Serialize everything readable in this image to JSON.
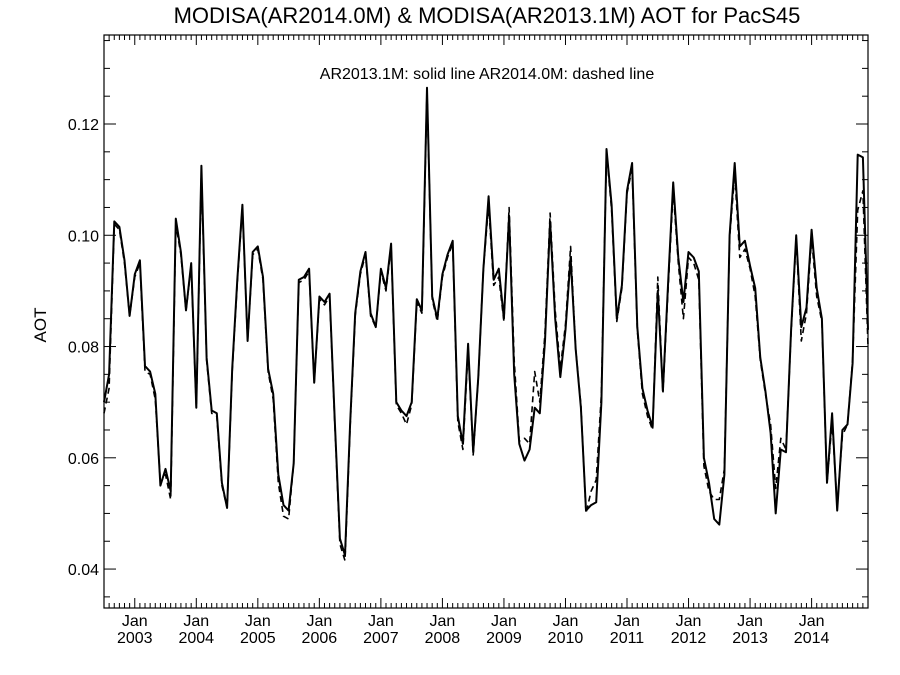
{
  "chart_data": {
    "type": "line",
    "title": "MODISA(AR2014.0M) & MODISA(AR2013.1M)  AOT for PacS45",
    "annotation": "AR2013.1M: solid line   AR2014.0M: dashed line",
    "ylabel": "AOT",
    "xlabel": "",
    "xlim": [
      "2002-07",
      "2014-12"
    ],
    "ylim": [
      0.033,
      0.136
    ],
    "y_ticks": [
      0.04,
      0.06,
      0.08,
      0.1,
      0.12
    ],
    "y_tick_labels": [
      "0.04",
      "0.06",
      "0.08",
      "0.10",
      "0.12"
    ],
    "x_ticks": [
      {
        "date": "2003-01",
        "month": "Jan",
        "year": "2003"
      },
      {
        "date": "2004-01",
        "month": "Jan",
        "year": "2004"
      },
      {
        "date": "2005-01",
        "month": "Jan",
        "year": "2005"
      },
      {
        "date": "2006-01",
        "month": "Jan",
        "year": "2006"
      },
      {
        "date": "2007-01",
        "month": "Jan",
        "year": "2007"
      },
      {
        "date": "2008-01",
        "month": "Jan",
        "year": "2008"
      },
      {
        "date": "2009-01",
        "month": "Jan",
        "year": "2009"
      },
      {
        "date": "2010-01",
        "month": "Jan",
        "year": "2010"
      },
      {
        "date": "2011-01",
        "month": "Jan",
        "year": "2011"
      },
      {
        "date": "2012-01",
        "month": "Jan",
        "year": "2012"
      },
      {
        "date": "2013-01",
        "month": "Jan",
        "year": "2013"
      },
      {
        "date": "2014-01",
        "month": "Jan",
        "year": "2014"
      }
    ],
    "grid": false,
    "x": [
      "2002-07",
      "2002-08",
      "2002-09",
      "2002-10",
      "2002-11",
      "2002-12",
      "2003-01",
      "2003-02",
      "2003-03",
      "2003-04",
      "2003-05",
      "2003-06",
      "2003-07",
      "2003-08",
      "2003-09",
      "2003-10",
      "2003-11",
      "2003-12",
      "2004-01",
      "2004-02",
      "2004-03",
      "2004-04",
      "2004-05",
      "2004-06",
      "2004-07",
      "2004-08",
      "2004-09",
      "2004-10",
      "2004-11",
      "2004-12",
      "2005-01",
      "2005-02",
      "2005-03",
      "2005-04",
      "2005-05",
      "2005-06",
      "2005-07",
      "2005-08",
      "2005-09",
      "2005-10",
      "2005-11",
      "2005-12",
      "2006-01",
      "2006-02",
      "2006-03",
      "2006-04",
      "2006-05",
      "2006-06",
      "2006-07",
      "2006-08",
      "2006-09",
      "2006-10",
      "2006-11",
      "2006-12",
      "2007-01",
      "2007-02",
      "2007-03",
      "2007-04",
      "2007-05",
      "2007-06",
      "2007-07",
      "2007-08",
      "2007-09",
      "2007-10",
      "2007-11",
      "2007-12",
      "2008-01",
      "2008-02",
      "2008-03",
      "2008-04",
      "2008-05",
      "2008-06",
      "2008-07",
      "2008-08",
      "2008-09",
      "2008-10",
      "2008-11",
      "2008-12",
      "2009-01",
      "2009-02",
      "2009-03",
      "2009-04",
      "2009-05",
      "2009-06",
      "2009-07",
      "2009-08",
      "2009-09",
      "2009-10",
      "2009-11",
      "2009-12",
      "2010-01",
      "2010-02",
      "2010-03",
      "2010-04",
      "2010-05",
      "2010-06",
      "2010-07",
      "2010-08",
      "2010-09",
      "2010-10",
      "2010-11",
      "2010-12",
      "2011-01",
      "2011-02",
      "2011-03",
      "2011-04",
      "2011-05",
      "2011-06",
      "2011-07",
      "2011-08",
      "2011-09",
      "2011-10",
      "2011-11",
      "2011-12",
      "2012-01",
      "2012-02",
      "2012-03",
      "2012-04",
      "2012-05",
      "2012-06",
      "2012-07",
      "2012-08",
      "2012-09",
      "2012-10",
      "2012-11",
      "2012-12",
      "2013-01",
      "2013-02",
      "2013-03",
      "2013-04",
      "2013-05",
      "2013-06",
      "2013-07",
      "2013-08",
      "2013-09",
      "2013-10",
      "2013-11",
      "2013-12",
      "2014-01",
      "2014-02",
      "2014-03",
      "2014-04",
      "2014-05",
      "2014-06",
      "2014-07",
      "2014-08",
      "2014-09",
      "2014-10",
      "2014-11",
      "2014-12"
    ],
    "series": [
      {
        "name": "AR2013.1M",
        "style": "solid",
        "values": [
          0.07,
          0.075,
          0.1025,
          0.1015,
          0.0955,
          0.0855,
          0.093,
          0.0955,
          0.0765,
          0.0755,
          0.0715,
          0.055,
          0.058,
          0.054,
          0.103,
          0.097,
          0.0865,
          0.095,
          0.069,
          0.1125,
          0.078,
          0.0685,
          0.068,
          0.0555,
          0.051,
          0.076,
          0.092,
          0.1055,
          0.081,
          0.097,
          0.098,
          0.0925,
          0.076,
          0.0715,
          0.057,
          0.0515,
          0.0505,
          0.059,
          0.092,
          0.0925,
          0.094,
          0.0735,
          0.089,
          0.088,
          0.0895,
          0.067,
          0.0455,
          0.0425,
          0.066,
          0.086,
          0.0935,
          0.097,
          0.086,
          0.0835,
          0.094,
          0.0905,
          0.0985,
          0.07,
          0.0685,
          0.0675,
          0.07,
          0.0885,
          0.0865,
          0.1265,
          0.089,
          0.085,
          0.093,
          0.0965,
          0.099,
          0.0675,
          0.0625,
          0.0805,
          0.061,
          0.0745,
          0.094,
          0.107,
          0.092,
          0.094,
          0.085,
          0.1035,
          0.075,
          0.0625,
          0.0595,
          0.0615,
          0.069,
          0.068,
          0.081,
          0.1025,
          0.085,
          0.0745,
          0.083,
          0.096,
          0.0795,
          0.069,
          0.0505,
          0.0515,
          0.052,
          0.07,
          0.1155,
          0.1055,
          0.085,
          0.091,
          0.108,
          0.113,
          0.0835,
          0.0725,
          0.0685,
          0.0655,
          0.09,
          0.072,
          0.091,
          0.1095,
          0.096,
          0.088,
          0.097,
          0.096,
          0.0935,
          0.06,
          0.0555,
          0.049,
          0.048,
          0.057,
          0.1,
          0.113,
          0.098,
          0.099,
          0.0945,
          0.0905,
          0.078,
          0.072,
          0.0645,
          0.05,
          0.0615,
          0.061,
          0.083,
          0.1,
          0.0835,
          0.087,
          0.101,
          0.0905,
          0.085,
          0.0555,
          0.068,
          0.0505,
          0.065,
          0.066,
          0.077,
          0.1145,
          0.114,
          0.083
        ]
      },
      {
        "name": "AR2014.0M",
        "style": "dashed",
        "values": [
          0.068,
          0.0725,
          0.102,
          0.101,
          0.095,
          0.0855,
          0.0925,
          0.095,
          0.0755,
          0.075,
          0.0705,
          0.0555,
          0.057,
          0.0525,
          0.102,
          0.0965,
          0.0865,
          0.0945,
          0.069,
          0.1115,
          0.0775,
          0.068,
          0.0675,
          0.055,
          0.051,
          0.0755,
          0.0915,
          0.105,
          0.081,
          0.0965,
          0.0975,
          0.092,
          0.0755,
          0.0705,
          0.0555,
          0.0495,
          0.049,
          0.059,
          0.0915,
          0.092,
          0.0935,
          0.0735,
          0.0885,
          0.0875,
          0.089,
          0.0665,
          0.0445,
          0.0415,
          0.0655,
          0.0855,
          0.093,
          0.0965,
          0.0855,
          0.0835,
          0.0935,
          0.09,
          0.098,
          0.0695,
          0.068,
          0.066,
          0.0695,
          0.088,
          0.086,
          0.126,
          0.0885,
          0.0845,
          0.0925,
          0.096,
          0.0985,
          0.0665,
          0.0615,
          0.0795,
          0.0605,
          0.0745,
          0.094,
          0.1055,
          0.091,
          0.0925,
          0.0845,
          0.105,
          0.0775,
          0.063,
          0.0635,
          0.0625,
          0.0755,
          0.07,
          0.0825,
          0.104,
          0.0865,
          0.076,
          0.084,
          0.098,
          0.0795,
          0.0695,
          0.05,
          0.054,
          0.056,
          0.0715,
          0.115,
          0.1045,
          0.0845,
          0.0905,
          0.1075,
          0.112,
          0.083,
          0.0715,
          0.0675,
          0.065,
          0.0925,
          0.0715,
          0.09,
          0.108,
          0.095,
          0.085,
          0.096,
          0.095,
          0.092,
          0.0585,
          0.054,
          0.0525,
          0.0525,
          0.058,
          0.0995,
          0.111,
          0.096,
          0.0975,
          0.094,
          0.089,
          0.0775,
          0.0715,
          0.066,
          0.0545,
          0.0635,
          0.0615,
          0.0825,
          0.0995,
          0.081,
          0.086,
          0.0995,
          0.089,
          0.0845,
          0.0555,
          0.0665,
          0.0515,
          0.064,
          0.066,
          0.0775,
          0.1045,
          0.108,
          0.08
        ]
      }
    ]
  }
}
